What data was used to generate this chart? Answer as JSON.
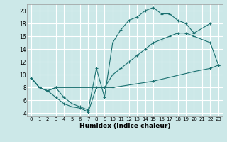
{
  "xlabel": "Humidex (Indice chaleur)",
  "xlim": [
    -0.5,
    23.5
  ],
  "ylim": [
    3.5,
    21.0
  ],
  "xticks": [
    0,
    1,
    2,
    3,
    4,
    5,
    6,
    7,
    8,
    9,
    10,
    11,
    12,
    13,
    14,
    15,
    16,
    17,
    18,
    19,
    20,
    21,
    22,
    23
  ],
  "yticks": [
    4,
    6,
    8,
    10,
    12,
    14,
    16,
    18,
    20
  ],
  "bg_color": "#cce8e8",
  "grid_color": "#ffffff",
  "line_color": "#1a7070",
  "line1_x": [
    0,
    1,
    2,
    3,
    4,
    5,
    6,
    7,
    8,
    9,
    10,
    11,
    12,
    13,
    14,
    15,
    16,
    17,
    18,
    19,
    20,
    22
  ],
  "line1_y": [
    9.5,
    8.0,
    7.5,
    8.0,
    6.5,
    5.5,
    5.0,
    4.5,
    11.0,
    6.5,
    15.0,
    17.0,
    18.5,
    19.0,
    20.0,
    20.5,
    19.5,
    19.5,
    18.5,
    18.0,
    16.5,
    18.0
  ],
  "line2_x": [
    0,
    1,
    2,
    3,
    4,
    5,
    6,
    7,
    8,
    9,
    10,
    11,
    12,
    13,
    14,
    15,
    16,
    17,
    18,
    19,
    20,
    22,
    23
  ],
  "line2_y": [
    9.5,
    8.0,
    7.5,
    6.5,
    5.5,
    5.0,
    4.8,
    4.2,
    8.0,
    8.0,
    10.0,
    11.0,
    12.0,
    13.0,
    14.0,
    15.0,
    15.5,
    16.0,
    16.5,
    16.5,
    16.0,
    15.0,
    11.5
  ],
  "line3_x": [
    0,
    1,
    2,
    3,
    10,
    15,
    20,
    22,
    23
  ],
  "line3_y": [
    9.5,
    8.0,
    7.5,
    8.0,
    8.0,
    9.0,
    10.5,
    11.0,
    11.5
  ]
}
